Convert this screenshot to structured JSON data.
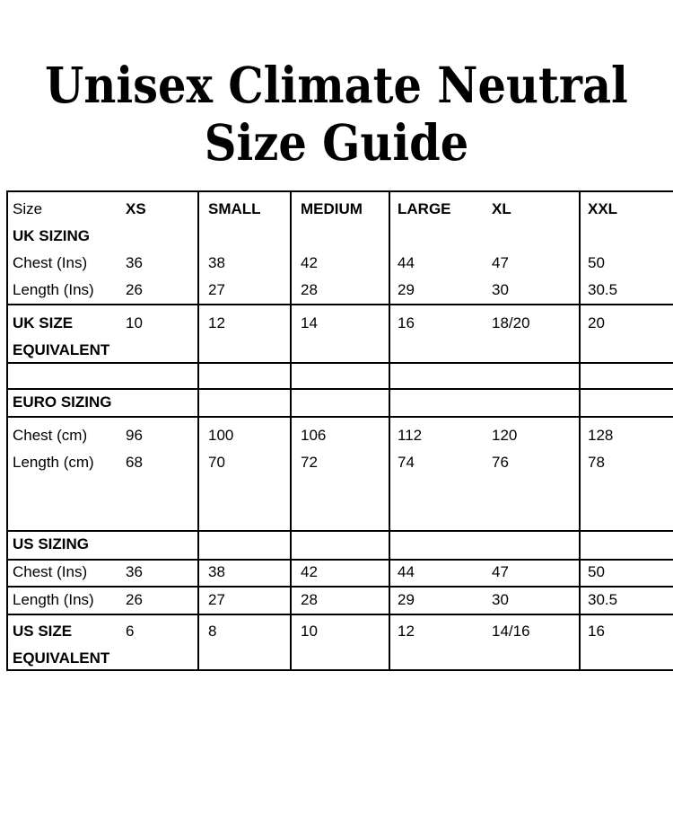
{
  "title": {
    "line1": "Unisex Climate Neutral",
    "line2": "Size Guide"
  },
  "size_table": {
    "header": {
      "size": "Size",
      "xs": "XS",
      "small": "SMALL",
      "medium": "MEDIUM",
      "large": "LARGE",
      "xl": "XL",
      "xxl": "XXL"
    },
    "uk": {
      "section": "UK SIZING",
      "chest": {
        "label": "Chest (Ins)",
        "xs": "36",
        "small": "38",
        "medium": "42",
        "large": "44",
        "xl": "47",
        "xxl": "50"
      },
      "length": {
        "label": "Length (Ins)",
        "xs": "26",
        "small": "27",
        "medium": "28",
        "large": "29",
        "xl": "30",
        "xxl": "30.5"
      },
      "equivalent": {
        "label_line1": "UK SIZE",
        "label_line2": "EQUIVALENT",
        "xs": "10",
        "small": "12",
        "medium": "14",
        "large": "16",
        "xl": "18/20",
        "xxl": "20"
      }
    },
    "euro": {
      "section": "EURO SIZING",
      "chest": {
        "label": "Chest (cm)",
        "xs": "96",
        "small": "100",
        "medium": "106",
        "large": "112",
        "xl": "120",
        "xxl": "128"
      },
      "length": {
        "label": "Length (cm)",
        "xs": "68",
        "small": "70",
        "medium": "72",
        "large": "74",
        "xl": "76",
        "xxl": "78"
      }
    },
    "us": {
      "section": "US SIZING",
      "chest": {
        "label": "Chest (Ins)",
        "xs": "36",
        "small": "38",
        "medium": "42",
        "large": "44",
        "xl": "47",
        "xxl": "50"
      },
      "length": {
        "label": "Length (Ins)",
        "xs": "26",
        "small": "27",
        "medium": "28",
        "large": "29",
        "xl": "30",
        "xxl": "30.5"
      },
      "equivalent": {
        "label_line1": "US SIZE",
        "label_line2": "EQUIVALENT",
        "xs": "6",
        "small": "8",
        "medium": "10",
        "large": "12",
        "xl": "14/16",
        "xxl": "16"
      }
    }
  },
  "colors": {
    "background": "#ffffff",
    "text": "#000000",
    "border": "#000000"
  }
}
